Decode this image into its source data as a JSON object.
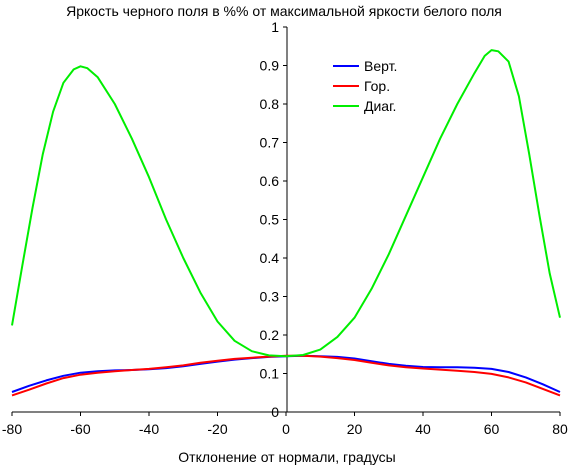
{
  "chart_data": {
    "type": "line",
    "title": "Яркость черного поля в %% от максимальной яркости белого поля",
    "xlabel": "Отклонение от нормали, градусы",
    "ylabel": "",
    "xlim": [
      -80,
      80
    ],
    "ylim": [
      0,
      1
    ],
    "x_ticks": [
      -80,
      -60,
      -40,
      -20,
      0,
      20,
      40,
      60,
      80
    ],
    "y_ticks": [
      0,
      0.1,
      0.2,
      0.3,
      0.4,
      0.5,
      0.6,
      0.7,
      0.8,
      0.9,
      1
    ],
    "grid": false,
    "legend_position": "top-right",
    "series": [
      {
        "name": "Верт.",
        "color": "#0000ff",
        "points": [
          [
            -80,
            0.052
          ],
          [
            -75,
            0.068
          ],
          [
            -70,
            0.082
          ],
          [
            -65,
            0.094
          ],
          [
            -60,
            0.102
          ],
          [
            -55,
            0.106
          ],
          [
            -50,
            0.108
          ],
          [
            -45,
            0.109
          ],
          [
            -40,
            0.111
          ],
          [
            -35,
            0.114
          ],
          [
            -30,
            0.119
          ],
          [
            -25,
            0.125
          ],
          [
            -20,
            0.131
          ],
          [
            -15,
            0.136
          ],
          [
            -10,
            0.14
          ],
          [
            -5,
            0.143
          ],
          [
            0,
            0.145
          ],
          [
            5,
            0.146
          ],
          [
            10,
            0.145
          ],
          [
            15,
            0.143
          ],
          [
            20,
            0.139
          ],
          [
            25,
            0.132
          ],
          [
            30,
            0.125
          ],
          [
            35,
            0.12
          ],
          [
            40,
            0.117
          ],
          [
            45,
            0.116
          ],
          [
            50,
            0.116
          ],
          [
            55,
            0.115
          ],
          [
            60,
            0.112
          ],
          [
            65,
            0.104
          ],
          [
            70,
            0.09
          ],
          [
            75,
            0.072
          ],
          [
            80,
            0.052
          ]
        ]
      },
      {
        "name": "Гор.",
        "color": "#ff0000",
        "points": [
          [
            -80,
            0.043
          ],
          [
            -75,
            0.058
          ],
          [
            -70,
            0.074
          ],
          [
            -65,
            0.088
          ],
          [
            -60,
            0.097
          ],
          [
            -55,
            0.102
          ],
          [
            -50,
            0.106
          ],
          [
            -45,
            0.109
          ],
          [
            -40,
            0.112
          ],
          [
            -35,
            0.116
          ],
          [
            -30,
            0.121
          ],
          [
            -25,
            0.128
          ],
          [
            -20,
            0.133
          ],
          [
            -15,
            0.138
          ],
          [
            -10,
            0.141
          ],
          [
            -5,
            0.144
          ],
          [
            0,
            0.146
          ],
          [
            5,
            0.146
          ],
          [
            10,
            0.144
          ],
          [
            15,
            0.14
          ],
          [
            20,
            0.135
          ],
          [
            25,
            0.128
          ],
          [
            30,
            0.121
          ],
          [
            35,
            0.116
          ],
          [
            40,
            0.113
          ],
          [
            45,
            0.11
          ],
          [
            50,
            0.107
          ],
          [
            55,
            0.104
          ],
          [
            60,
            0.099
          ],
          [
            65,
            0.09
          ],
          [
            70,
            0.077
          ],
          [
            75,
            0.06
          ],
          [
            80,
            0.043
          ]
        ]
      },
      {
        "name": "Диаг.",
        "color": "#00ee00",
        "points": [
          [
            -80,
            0.225
          ],
          [
            -77,
            0.38
          ],
          [
            -74,
            0.53
          ],
          [
            -71,
            0.67
          ],
          [
            -68,
            0.78
          ],
          [
            -65,
            0.855
          ],
          [
            -62,
            0.89
          ],
          [
            -60,
            0.898
          ],
          [
            -58,
            0.893
          ],
          [
            -55,
            0.87
          ],
          [
            -50,
            0.8
          ],
          [
            -45,
            0.71
          ],
          [
            -40,
            0.61
          ],
          [
            -35,
            0.5
          ],
          [
            -30,
            0.4
          ],
          [
            -25,
            0.31
          ],
          [
            -20,
            0.235
          ],
          [
            -15,
            0.185
          ],
          [
            -10,
            0.158
          ],
          [
            -5,
            0.147
          ],
          [
            0,
            0.145
          ],
          [
            5,
            0.148
          ],
          [
            10,
            0.162
          ],
          [
            15,
            0.195
          ],
          [
            20,
            0.245
          ],
          [
            25,
            0.32
          ],
          [
            30,
            0.41
          ],
          [
            35,
            0.51
          ],
          [
            40,
            0.61
          ],
          [
            45,
            0.71
          ],
          [
            50,
            0.8
          ],
          [
            55,
            0.88
          ],
          [
            58,
            0.925
          ],
          [
            60,
            0.94
          ],
          [
            62,
            0.937
          ],
          [
            65,
            0.91
          ],
          [
            68,
            0.82
          ],
          [
            71,
            0.67
          ],
          [
            74,
            0.51
          ],
          [
            77,
            0.36
          ],
          [
            80,
            0.245
          ]
        ]
      }
    ]
  }
}
